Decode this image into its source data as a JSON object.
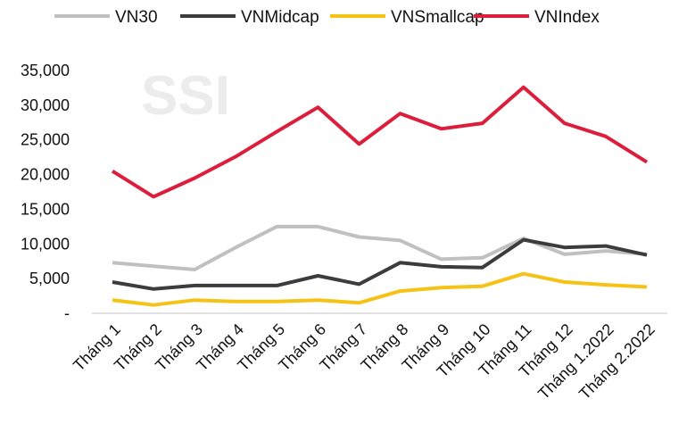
{
  "watermark": "SSI",
  "chart_data": {
    "type": "line",
    "title": "",
    "xlabel": "",
    "ylabel": "",
    "ylim": [
      0,
      35000
    ],
    "yticks": [
      0,
      5000,
      10000,
      15000,
      20000,
      25000,
      30000,
      35000
    ],
    "ytick_labels": [
      "-",
      "5,000",
      "10,000",
      "15,000",
      "20,000",
      "25,000",
      "30,000",
      "35,000"
    ],
    "grid": false,
    "legend_position": "top",
    "categories": [
      "Tháng  1",
      "Tháng  2",
      "Tháng  3",
      "Tháng  4",
      "Tháng  5",
      "Tháng  6",
      "Tháng  7",
      "Tháng  8",
      "Tháng  9",
      "Tháng  10",
      "Tháng 11",
      "Tháng 12",
      "Tháng 1.2022",
      "Tháng 2.2022"
    ],
    "series": [
      {
        "name": "VN30",
        "color": "#c0c0c0",
        "values": [
          7300,
          6800,
          6300,
          9500,
          12500,
          12500,
          11000,
          10500,
          7800,
          8000,
          10800,
          8500,
          9000,
          8500
        ]
      },
      {
        "name": "VNMidcap",
        "color": "#3c3c3c",
        "values": [
          4500,
          3500,
          4000,
          4000,
          4000,
          5400,
          4200,
          7300,
          6700,
          6600,
          10600,
          9500,
          9700,
          8400
        ]
      },
      {
        "name": "VNSmallcap",
        "color": "#f5c216",
        "values": [
          1900,
          1200,
          1900,
          1700,
          1700,
          1900,
          1500,
          3200,
          3700,
          3900,
          5700,
          4500,
          4100,
          3800
        ]
      },
      {
        "name": "VNIndex",
        "color": "#dc1e3c",
        "values": [
          20500,
          16800,
          19500,
          22600,
          26200,
          29700,
          24400,
          28800,
          26600,
          27400,
          32600,
          27400,
          25500,
          21800
        ]
      }
    ]
  }
}
